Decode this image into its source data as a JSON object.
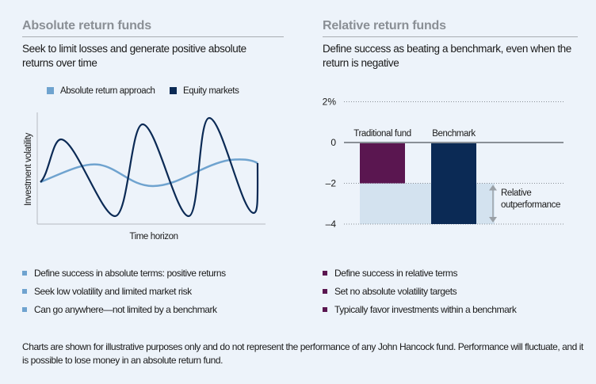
{
  "left": {
    "title": "Absolute return funds",
    "subtitle": "Seek to limit losses and generate positive absolute returns over time",
    "bullets": [
      "Define success in absolute terms: positive returns",
      "Seek low volatility and limited market risk",
      "Can go anywhere—not limited by a benchmark"
    ],
    "bullet_color": "#6fa3cf"
  },
  "right": {
    "title": "Relative return funds",
    "subtitle": "Define success as beating a benchmark, even when the return is negative",
    "bullets": [
      "Define success in relative terms",
      "Set no absolute volatility targets",
      "Typically favor investments within a benchmark"
    ],
    "bullet_color": "#5a1650"
  },
  "footnote": "Charts are shown for illustrative purposes only and do not represent the performance of any John Hancock fund. Performance will fluctuate, and it is possible to lose money in an absolute return fund.",
  "chart_data": [
    {
      "type": "line",
      "xlabel": "Time horizon",
      "ylabel": "Investment volatility",
      "grid": false,
      "legend_placement": "top",
      "series": [
        {
          "name": "Absolute return approach",
          "color": "#6fa3cf"
        },
        {
          "name": "Equity markets",
          "color": "#0b2a55"
        }
      ]
    },
    {
      "type": "bar",
      "categories": [
        "Traditional fund",
        "Benchmark"
      ],
      "values": [
        -2,
        -4
      ],
      "colors": [
        "#5a1650",
        "#0b2a55"
      ],
      "ylim": [
        -4,
        2
      ],
      "yticks": [
        {
          "value": 2,
          "label": "2%"
        },
        {
          "value": 0,
          "label": "0"
        },
        {
          "value": -2,
          "label": "–2"
        },
        {
          "value": -4,
          "label": "–4"
        }
      ],
      "annotation": "Relative outperformance",
      "shade_color": "#d3e2ef"
    }
  ]
}
